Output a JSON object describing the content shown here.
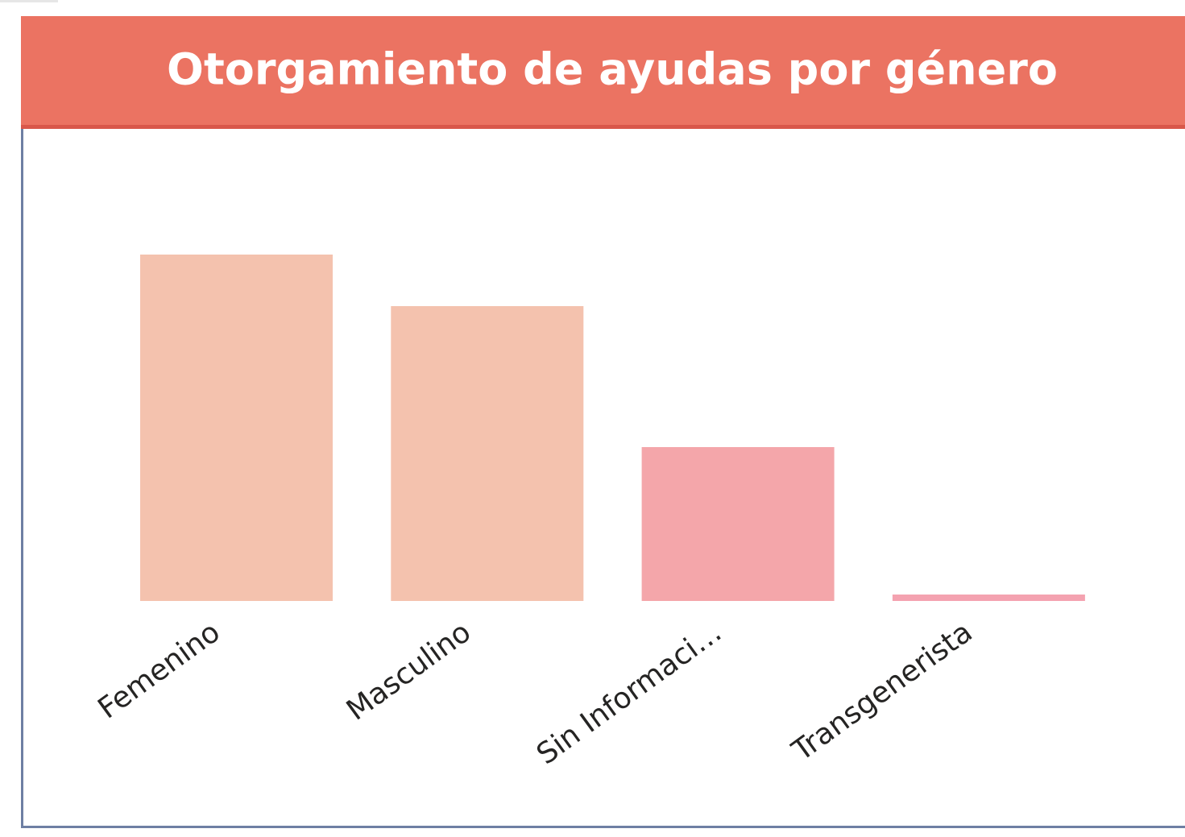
{
  "chart_data": {
    "type": "bar",
    "title": "Otorgamiento de ayudas por género",
    "categories": [
      "Femenino",
      "Masculino",
      "Sin Informaci…",
      "Transgenerista"
    ],
    "values": [
      430,
      366,
      191,
      8
    ],
    "colors": [
      "#f4c2ae",
      "#f4c2ae",
      "#f4a6aa",
      "#f4a2b0"
    ],
    "ylim": [
      0,
      430
    ]
  }
}
